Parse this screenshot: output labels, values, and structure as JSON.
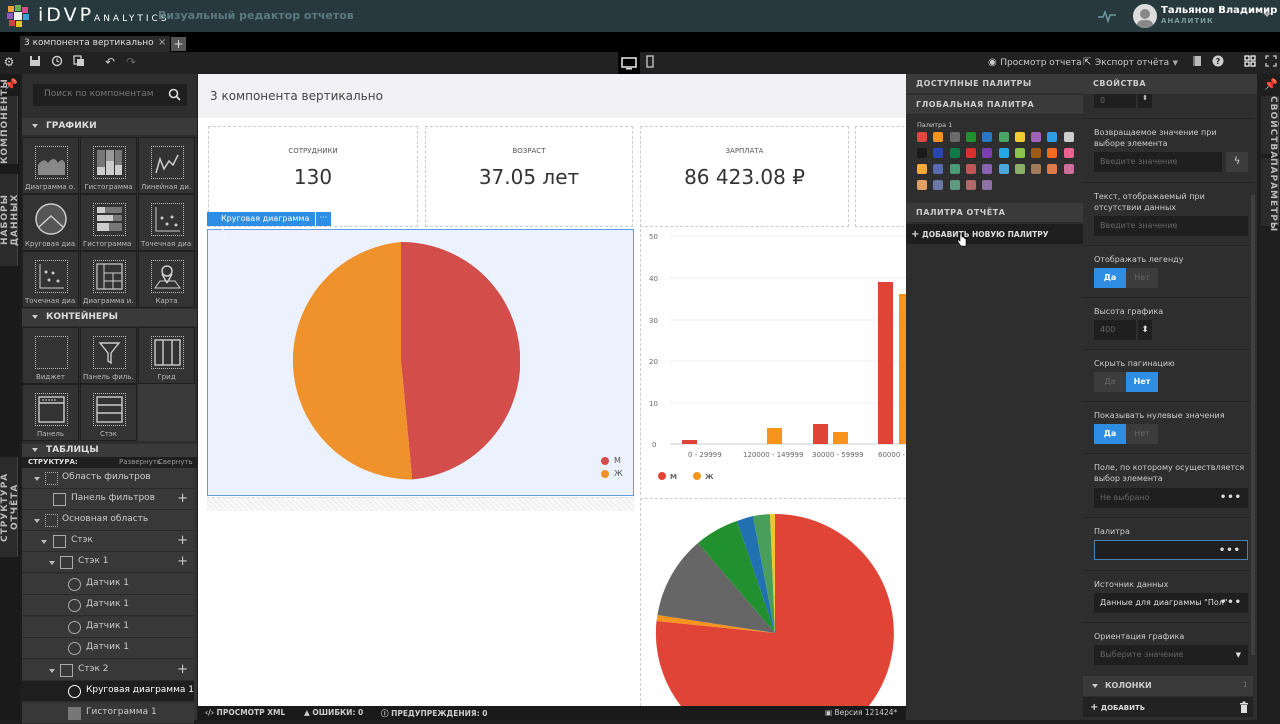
{
  "header": {
    "logo_main": "iDVP",
    "logo_sub": "ANALYTICS",
    "subtitle": "Визуальный редактор отчетов",
    "user_name": "Тальянов Владимир",
    "user_role": "АНАЛИТИК"
  },
  "tabs": [
    {
      "label": "3 компонента вертикально",
      "close": "×"
    }
  ],
  "new_tab": "+",
  "toolbar": {
    "preview": "Просмотр отчета",
    "export": "Экспорт отчёта"
  },
  "left_rail": {
    "components": "КОМПОНЕНТЫ",
    "datasets": "НАБОРЫ ДАННЫХ",
    "structure": "СТРУКТУРА ОТЧЁТА"
  },
  "components_panel": {
    "search_placeholder": "Поиск по компонентам",
    "sections": {
      "charts": "ГРАФИКИ",
      "containers": "КОНТЕЙНЕРЫ",
      "tables": "ТАБЛИЦЫ"
    },
    "charts": [
      "Диаграмма о...",
      "Гистограмма",
      "Линейная ди...",
      "Круговая диа...",
      "Гистограмма ...",
      "Точечная диа...",
      "Точечная диа...",
      "Диаграмма и...",
      "Карта"
    ],
    "containers": [
      "Виджет",
      "Панель филь...",
      "Грид",
      "Панель",
      "Стэк"
    ]
  },
  "structure": {
    "title": "СТРУКТУРА:",
    "expand": "Развернуть",
    "collapse": "Свернуть",
    "rows": [
      {
        "label": "Область фильтров"
      },
      {
        "label": "Панель фильтров"
      },
      {
        "label": "Основная область"
      },
      {
        "label": "Стэк"
      },
      {
        "label": "Стэк 1"
      },
      {
        "label": "Датчик 1"
      },
      {
        "label": "Датчик 1"
      },
      {
        "label": "Датчик 1"
      },
      {
        "label": "Датчик 1"
      },
      {
        "label": "Стэк 2"
      },
      {
        "label": "Круговая диаграмма 1"
      },
      {
        "label": "Гистограмма 1"
      }
    ]
  },
  "canvas": {
    "title": "3 компонента вертикально",
    "kpis": [
      {
        "label": "СОТРУДНИКИ",
        "value": "130"
      },
      {
        "label": "ВОЗРАСТ",
        "value": "37.05 лет"
      },
      {
        "label": "ЗАРПЛАТА",
        "value": "86 423.08 ₽"
      }
    ],
    "selected_component": "Круговая диаграмма 1",
    "selected_more": "···"
  },
  "chart_data": [
    {
      "type": "pie",
      "title": "Круговая диаграмма 1",
      "categories": [
        "М",
        "Ж"
      ],
      "values": [
        49,
        51
      ],
      "colors": [
        "#d34d4a",
        "#f0922b"
      ],
      "legend_position": "bottom-right"
    },
    {
      "type": "bar",
      "categories": [
        "0 - 29999",
        "120000 - 149999",
        "30000 - 59999",
        "60000 - 89999"
      ],
      "series": [
        {
          "name": "М",
          "values": [
            1,
            0,
            5,
            39
          ],
          "color": "#e04436"
        },
        {
          "name": "Ж",
          "values": [
            0,
            4,
            3,
            36
          ],
          "color": "#f7941d"
        }
      ],
      "y_ticks": [
        0,
        10,
        20,
        30,
        40,
        50
      ],
      "ylim": [
        0,
        50
      ],
      "grid": true,
      "legend_position": "bottom-left"
    },
    {
      "type": "pie",
      "values": [
        73,
        1,
        12,
        7,
        2.5,
        2.5,
        1
      ],
      "colors": [
        "#e04436",
        "#f7941d",
        "#666666",
        "#21902f",
        "#2170b0",
        "#4a9e5c",
        "#f0c62e"
      ]
    }
  ],
  "statusbar": {
    "xml": "ПРОСМОТР XML",
    "errors": "ОШИБКИ: 0",
    "warnings": "ПРЕДУПРЕЖДЕНИЯ: 0",
    "version": "Версия 121424*"
  },
  "palettes": {
    "available": "ДОСТУПНЫЕ ПАЛИТРЫ",
    "global": "ГЛОБАЛЬНАЯ ПАЛИТРА",
    "palette_name": "Палитра 1",
    "colors": [
      "#e2473f",
      "#f7941d",
      "#6a6a6a",
      "#21902f",
      "#2878c4",
      "#4aa466",
      "#f1cb2f",
      "#a062b6",
      "#2e9be3",
      "#cccccc",
      "#1a1a1a",
      "#2746b0",
      "#0f7a48",
      "#d8302d",
      "#7a3eb2",
      "#25a9e4",
      "#8ac44a",
      "#9c5b17",
      "#f46a1e",
      "#e8638f",
      "#f7aa3a",
      "#566bb0",
      "#4b9a78",
      "#c25656",
      "#8a62b2",
      "#4ea6d8",
      "#8ab06a",
      "#a17a5a",
      "#e07c4a",
      "#cc6f9a",
      "#e0a066",
      "#6a78a8",
      "#5e9a80",
      "#b06a6a",
      "#8e72a6"
    ],
    "report_palette": "ПАЛИТРА ОТЧЁТА",
    "add_palette": "ДОБАВИТЬ НОВУЮ ПАЛИТРУ"
  },
  "properties": {
    "title": "СВОЙСТВА",
    "top_value": "0",
    "return_value_label": "Возвращаемое значение при выборе элемента",
    "return_value_placeholder": "Введите значение",
    "no_data_label": "Текст, отображаемый при отсутствии данных",
    "no_data_placeholder": "Введите значение",
    "show_legend_label": "Отображать легенду",
    "yes": "Да",
    "no": "Нет",
    "chart_height_label": "Высота графика",
    "chart_height_value": "400",
    "hide_pagination_label": "Скрыть пагинацию",
    "show_zero_label": "Показывать нулевые значения",
    "select_field_label": "Поле, по которому осуществляется выбор элемента",
    "select_field_value": "Не выбрано",
    "palette_label": "Палитра",
    "palette_value": "",
    "datasource_label": "Источник данных",
    "datasource_value": "Данные для диаграммы \"Пол\"",
    "orientation_label": "Ориентация графика",
    "orientation_placeholder": "Выберите значение",
    "columns_header": "КОЛОНКИ",
    "columns_count": "1",
    "add": "ДОБАВИТЬ"
  },
  "right_rail": {
    "properties": "СВОЙСТВА",
    "parameters": "ПАРАМЕТРЫ"
  }
}
